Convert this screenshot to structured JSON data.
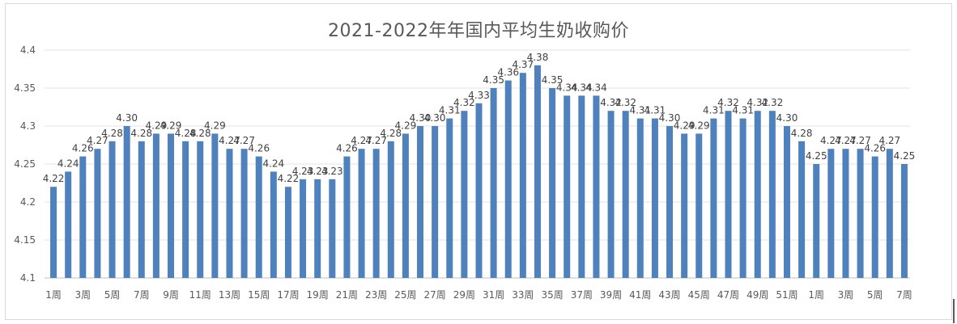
{
  "chart_data": {
    "type": "bar",
    "title": "2021-2022年年国内平均生奶收购价",
    "xlabel": "",
    "ylabel": "",
    "ylim": [
      4.1,
      4.4
    ],
    "yticks": [
      "4.1",
      "4.15",
      "4.2",
      "4.25",
      "4.3",
      "4.35",
      "4.4"
    ],
    "grid": true,
    "bar_color": "#4f81bd",
    "categories": [
      "1周",
      "2周",
      "3周",
      "4周",
      "5周",
      "6周",
      "7周",
      "8周",
      "9周",
      "10周",
      "11周",
      "12周",
      "13周",
      "14周",
      "15周",
      "16周",
      "17周",
      "18周",
      "19周",
      "20周",
      "21周",
      "22周",
      "23周",
      "24周",
      "25周",
      "26周",
      "27周",
      "28周",
      "29周",
      "30周",
      "31周",
      "32周",
      "33周",
      "34周",
      "35周",
      "36周",
      "37周",
      "38周",
      "39周",
      "40周",
      "41周",
      "42周",
      "43周",
      "44周",
      "45周",
      "46周",
      "47周",
      "48周",
      "49周",
      "50周",
      "51周",
      "52周",
      "1周",
      "2周",
      "3周",
      "4周",
      "5周",
      "6周",
      "7周"
    ],
    "tick_labels": [
      "1周",
      "3周",
      "5周",
      "7周",
      "9周",
      "11周",
      "13周",
      "15周",
      "17周",
      "19周",
      "21周",
      "23周",
      "25周",
      "27周",
      "29周",
      "31周",
      "33周",
      "35周",
      "37周",
      "39周",
      "41周",
      "43周",
      "45周",
      "47周",
      "49周",
      "51周",
      "1周",
      "3周",
      "5周",
      "7周"
    ],
    "values": [
      4.22,
      4.24,
      4.26,
      4.27,
      4.28,
      4.3,
      4.28,
      4.29,
      4.29,
      4.28,
      4.28,
      4.29,
      4.27,
      4.27,
      4.26,
      4.24,
      4.22,
      4.23,
      4.23,
      4.23,
      4.26,
      4.27,
      4.27,
      4.28,
      4.29,
      4.3,
      4.3,
      4.31,
      4.32,
      4.33,
      4.35,
      4.36,
      4.37,
      4.38,
      4.35,
      4.34,
      4.34,
      4.34,
      4.32,
      4.32,
      4.31,
      4.31,
      4.3,
      4.29,
      4.29,
      4.31,
      4.32,
      4.31,
      4.32,
      4.32,
      4.3,
      4.28,
      4.25,
      4.27,
      4.27,
      4.27,
      4.26,
      4.27,
      4.25
    ],
    "data_labels": [
      "4.22",
      "4.24",
      "4.26",
      "4.27",
      "4.28",
      "4.30",
      "4.28",
      "4.29",
      "4.29",
      "4.28",
      "4.28",
      "4.29",
      "4.27",
      "4.27",
      "4.26",
      "4.24",
      "4.22",
      "4.23",
      "4.23",
      "4.23",
      "4.26",
      "4.27",
      "4.27",
      "4.28",
      "4.29",
      "4.30",
      "4.30",
      "4.31",
      "4.32",
      "4.33",
      "4.35",
      "4.36",
      "4.37",
      "4.38",
      "4.35",
      "4.34",
      "4.34",
      "4.34",
      "4.32",
      "4.32",
      "4.31",
      "4.31",
      "4.30",
      "4.29",
      "4.29",
      "4.31",
      "4.32",
      "4.31",
      "4.32",
      "4.32",
      "4.30",
      "4.28",
      "4.25",
      "4.27",
      "4.27",
      "4.27",
      "4.26",
      "4.27",
      "4.25"
    ]
  }
}
